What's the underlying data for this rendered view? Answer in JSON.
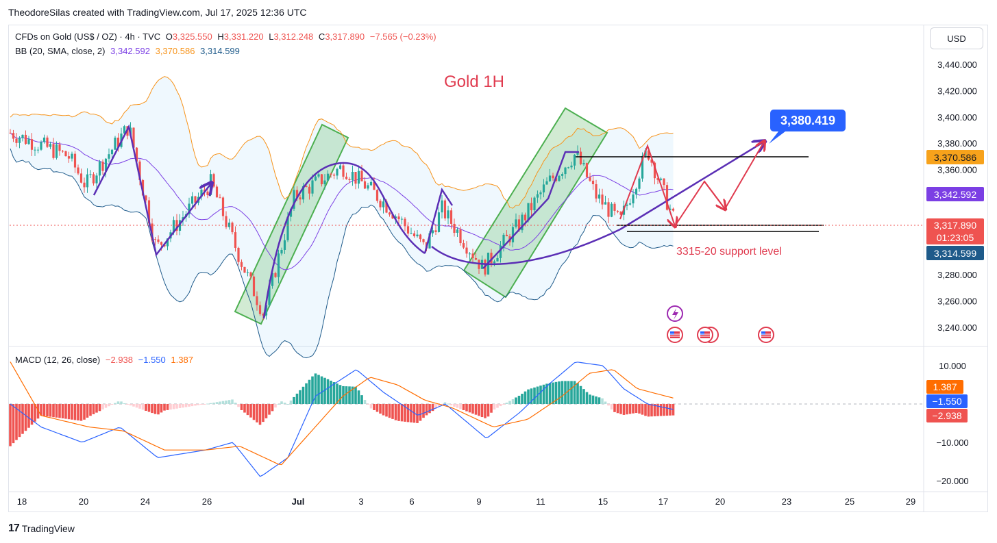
{
  "header": {
    "attribution": "TheodoreSilas created with TradingView.com, Jul 17, 2025 12:36 UTC"
  },
  "symbol": {
    "name": "CFDs on Gold (US$ / OZ) · 4h · TVC",
    "open_label": "O",
    "open": "3,325.550",
    "high_label": "H",
    "high": "3,331.220",
    "low_label": "L",
    "low": "3,312.248",
    "close_label": "C",
    "close": "3,317.890",
    "change": "−7.565 (−0.23%)"
  },
  "bb": {
    "label": "BB (20, SMA, close, 2)",
    "basis": "3,342.592",
    "upper": "3,370.586",
    "lower": "3,314.599"
  },
  "macd": {
    "label": "MACD (12, 26, close)",
    "hist": "−2.938",
    "macd": "−1.550",
    "signal": "1.387"
  },
  "currency_button": "USD",
  "footer": {
    "logo": "17",
    "brand": "TradingView"
  },
  "annotations": {
    "title": "Gold 1H",
    "support": "3315-20 support level",
    "target": "3,380.419"
  },
  "price_badges": {
    "upper": "3,370.586",
    "basis": "3,342.592",
    "close": "3,317.890",
    "countdown": "01:23:05",
    "lower": "3,314.599"
  },
  "macd_badges": {
    "signal": "1.387",
    "macd": "−1.550",
    "hist": "−2.938"
  },
  "colors": {
    "up": "#26a69a",
    "down": "#ef5350",
    "bb_basis": "#7b3fe4",
    "bb_upper": "#f7931a",
    "bb_lower": "#1e5a8a",
    "macd_line": "#2962ff",
    "signal_line": "#ff6d00",
    "annotation": "#e03a4e",
    "drawing": "#5b2fb5",
    "channel": "#4caf50"
  },
  "chart_data": [
    {
      "type": "candlestick",
      "title": "Gold 1H",
      "price_axis": [
        "3,440.000",
        "3,420.000",
        "3,400.000",
        "3,380.000",
        "3,360.000",
        "3,340.000",
        "3,300.000",
        "3,280.000",
        "3,260.000",
        "3,240.000"
      ],
      "ylim": [
        3230,
        3460
      ],
      "time_axis": [
        "18",
        "20",
        "24",
        "26",
        "Jul",
        "3",
        "6",
        "9",
        "11",
        "15",
        "17",
        "20",
        "23",
        "25",
        "29"
      ],
      "key_prices": {
        "last": 3317.89,
        "bb_upper": 3370.586,
        "bb_basis": 3342.592,
        "bb_lower": 3314.599,
        "target": 3380.419,
        "support_band": [
          3315,
          3320
        ]
      },
      "price_path": [
        [
          "Jun 17",
          3388
        ],
        [
          "Jun 19",
          3370
        ],
        [
          "Jun 20",
          3348
        ],
        [
          "Jun 23",
          3393
        ],
        [
          "Jun 24",
          3300
        ],
        [
          "Jun 26",
          3350
        ],
        [
          "Jun 27",
          3290
        ],
        [
          "Jun 30",
          3250
        ],
        [
          "Jul 1",
          3340
        ],
        [
          "Jul 2",
          3362
        ],
        [
          "Jul 3",
          3345
        ],
        [
          "Jul 6",
          3330
        ],
        [
          "Jul 7",
          3300
        ],
        [
          "Jul 8",
          3330
        ],
        [
          "Jul 9",
          3285
        ],
        [
          "Jul 10",
          3320
        ],
        [
          "Jul 11",
          3350
        ],
        [
          "Jul 14",
          3372
        ],
        [
          "Jul 15",
          3340
        ],
        [
          "Jul 16",
          3320
        ],
        [
          "Jul 16",
          3375
        ],
        [
          "Jul 17",
          3318
        ]
      ]
    },
    {
      "type": "bar",
      "title": "MACD (12, 26, close)",
      "value_axis": [
        "10.000",
        "−10.000",
        "−20.000"
      ],
      "ylim": [
        -23,
        13
      ],
      "last_values": {
        "histogram": -2.938,
        "macd": -1.55,
        "signal": 1.387
      }
    }
  ]
}
